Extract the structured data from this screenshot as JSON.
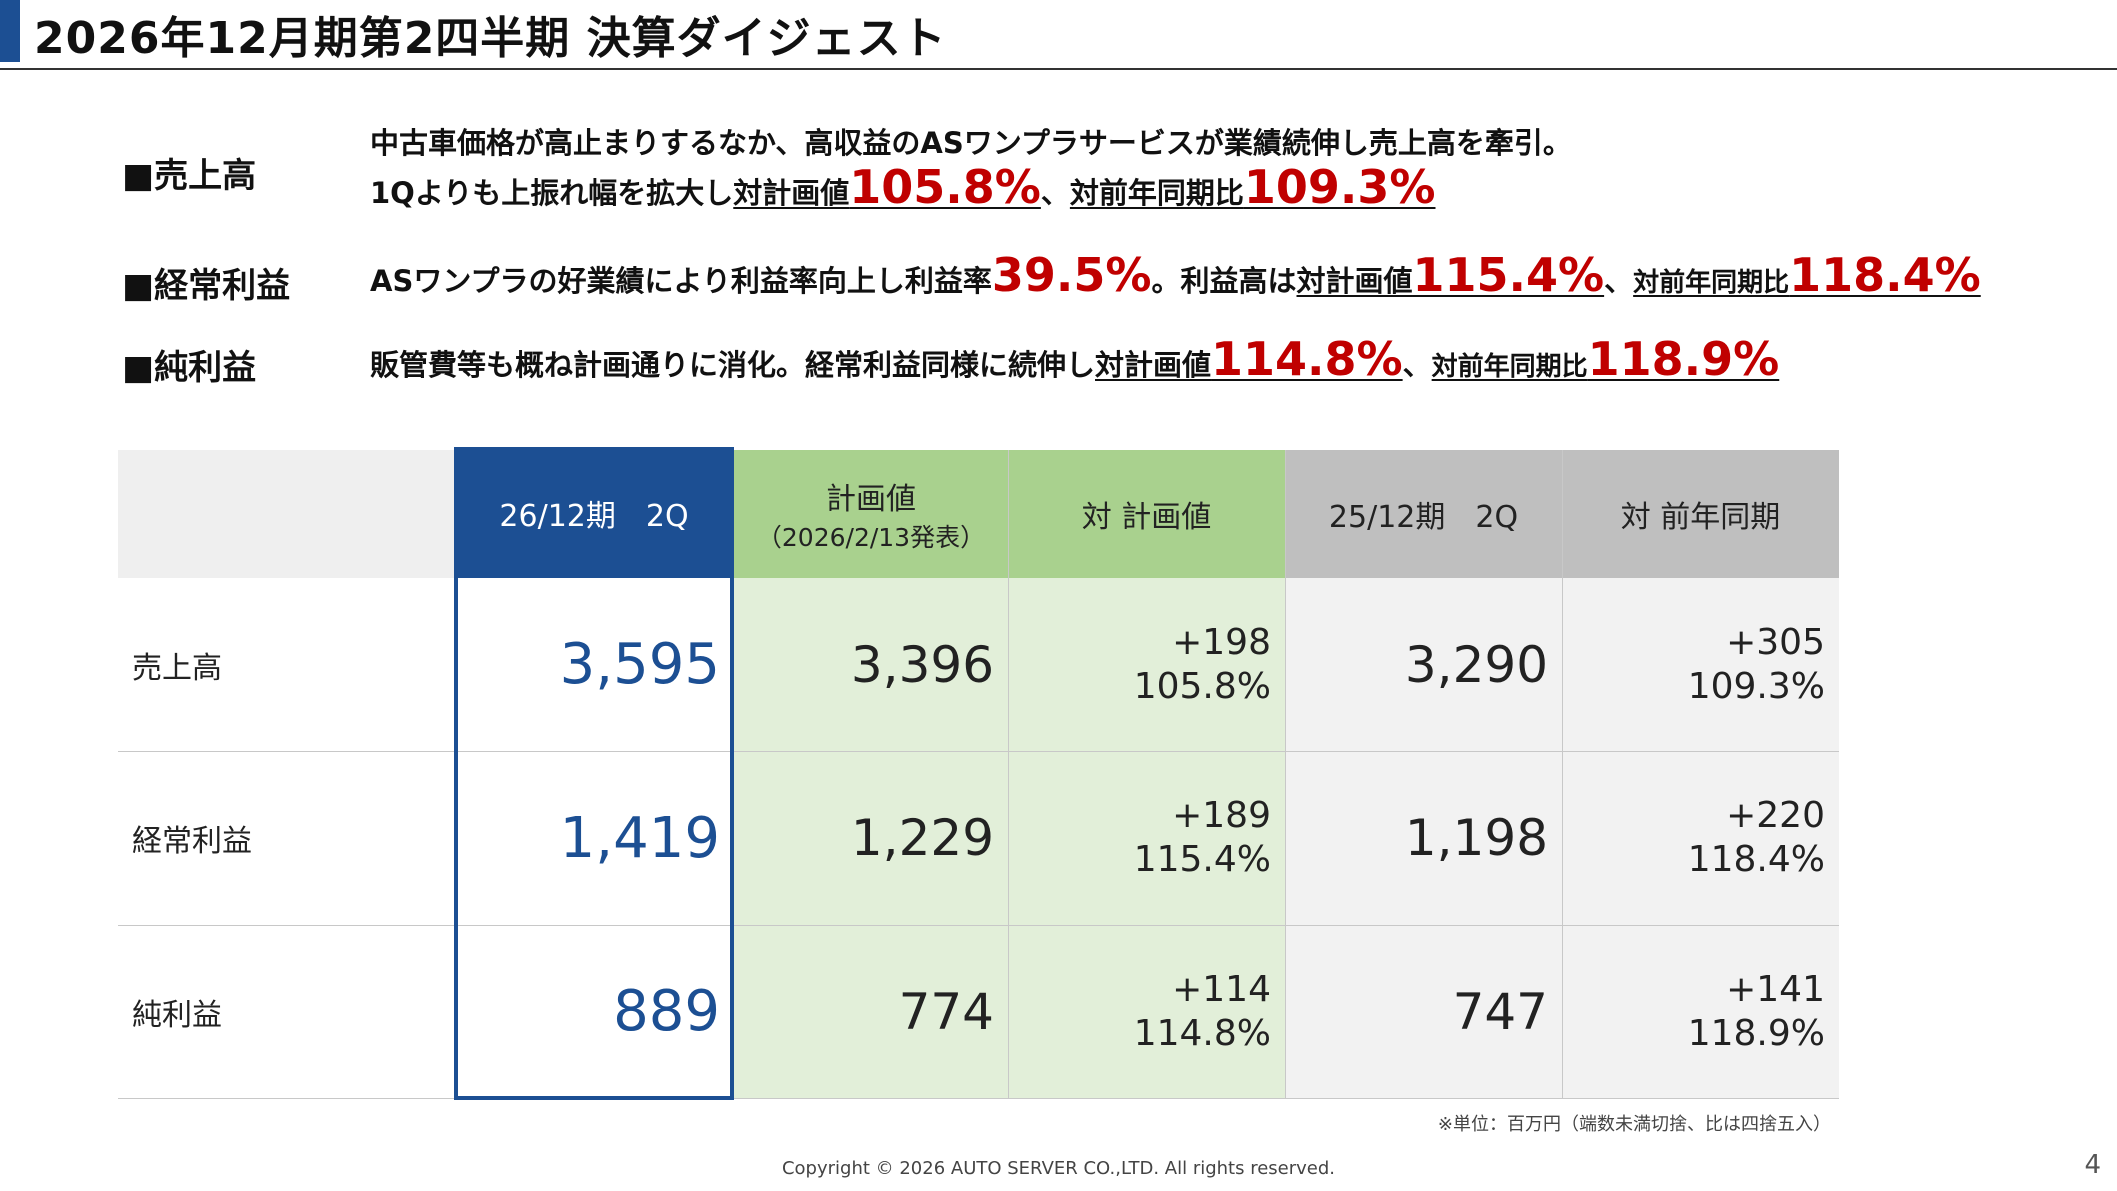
{
  "header": {
    "title": "2026年12月期第2四半期 決算ダイジェスト"
  },
  "summary": {
    "sales": {
      "label": "■売上高",
      "line1": "中古車価格が高止まりするなか、高収益のASワンプラサービスが業績続伸し売上高を牽引。",
      "line2_pre": "1Qよりも上振れ幅を拡大し",
      "plan_label": "対計画値",
      "plan_pct": "105.8%",
      "sep": "、",
      "yoy_label": "対前年同期比",
      "yoy_pct": "109.3%"
    },
    "ordinary": {
      "label": "■経常利益",
      "pre": "ASワンプラの好業績により利益率向上し利益率",
      "margin": "39.5%",
      "mid": "。利益高は",
      "plan_label": "対計画値",
      "plan_pct": "115.4%",
      "sep": "、",
      "yoy_label": "対前年同期比",
      "yoy_pct": "118.4%"
    },
    "net": {
      "label": "■純利益",
      "pre": "販管費等も概ね計画通りに消化。経常利益同様に続伸し",
      "plan_label": "対計画値",
      "plan_pct": "114.8%",
      "sep": "、",
      "yoy_label": "対前年同期比",
      "yoy_pct": "118.9%"
    }
  },
  "table": {
    "headers": {
      "current": "26/12期　2Q",
      "plan": "計画値",
      "plan_sub": "（2026/2/13発表）",
      "vs_plan": "対 計画値",
      "prior": "25/12期　2Q",
      "vs_prior": "対 前年同期"
    },
    "rows": [
      {
        "label": "売上高",
        "current": "3,595",
        "plan": "3,396",
        "vs_plan_diff": "+198",
        "vs_plan_pct": "105.8%",
        "prior": "3,290",
        "vs_prior_diff": "+305",
        "vs_prior_pct": "109.3%"
      },
      {
        "label": "経常利益",
        "current": "1,419",
        "plan": "1,229",
        "vs_plan_diff": "+189",
        "vs_plan_pct": "115.4%",
        "prior": "1,198",
        "vs_prior_diff": "+220",
        "vs_prior_pct": "118.4%"
      },
      {
        "label": "純利益",
        "current": "889",
        "plan": "774",
        "vs_plan_diff": "+114",
        "vs_plan_pct": "114.8%",
        "prior": "747",
        "vs_prior_diff": "+141",
        "vs_prior_pct": "118.9%"
      }
    ],
    "note": "※単位：百万円（端数未満切捨、比は四捨五入）"
  },
  "footer": {
    "copyright": "Copyright © 2026 AUTO SERVER CO.,LTD.  All rights reserved.",
    "page_number": "4"
  },
  "colors": {
    "accent_blue": "#1c4f93",
    "highlight_red": "#c00000",
    "plan_header_green": "#a9d18e",
    "plan_body_green": "#e2efd9",
    "prior_header_gray": "#bfbfbf",
    "prior_body_gray": "#f2f2f2",
    "label_header_gray": "#efefef"
  }
}
